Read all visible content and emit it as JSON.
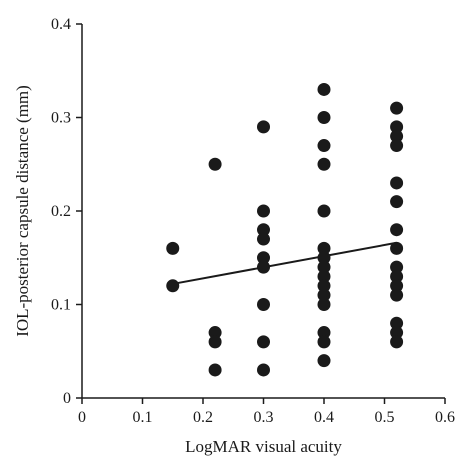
{
  "chart_data": {
    "type": "scatter",
    "xlabel": "LogMAR visual acuity",
    "ylabel": "IOL-posterior capsule distance (mm)",
    "xlim": [
      0,
      0.6
    ],
    "ylim": [
      0,
      0.4
    ],
    "xticks": [
      "0",
      "0.1",
      "0.2",
      "0.3",
      "0.4",
      "0.5",
      "0.6"
    ],
    "yticks": [
      "0",
      "0.1",
      "0.2",
      "0.3",
      "0.4"
    ],
    "grid": false,
    "marker_color": "#1a1a1a",
    "points": [
      {
        "x": 0.15,
        "y": 0.16
      },
      {
        "x": 0.15,
        "y": 0.12
      },
      {
        "x": 0.22,
        "y": 0.25
      },
      {
        "x": 0.22,
        "y": 0.07
      },
      {
        "x": 0.22,
        "y": 0.06
      },
      {
        "x": 0.22,
        "y": 0.03
      },
      {
        "x": 0.3,
        "y": 0.29
      },
      {
        "x": 0.3,
        "y": 0.2
      },
      {
        "x": 0.3,
        "y": 0.18
      },
      {
        "x": 0.3,
        "y": 0.17
      },
      {
        "x": 0.3,
        "y": 0.15
      },
      {
        "x": 0.3,
        "y": 0.14
      },
      {
        "x": 0.3,
        "y": 0.1
      },
      {
        "x": 0.3,
        "y": 0.06
      },
      {
        "x": 0.3,
        "y": 0.03
      },
      {
        "x": 0.4,
        "y": 0.33
      },
      {
        "x": 0.4,
        "y": 0.3
      },
      {
        "x": 0.4,
        "y": 0.27
      },
      {
        "x": 0.4,
        "y": 0.25
      },
      {
        "x": 0.4,
        "y": 0.2
      },
      {
        "x": 0.4,
        "y": 0.16
      },
      {
        "x": 0.4,
        "y": 0.15
      },
      {
        "x": 0.4,
        "y": 0.14
      },
      {
        "x": 0.4,
        "y": 0.13
      },
      {
        "x": 0.4,
        "y": 0.12
      },
      {
        "x": 0.4,
        "y": 0.11
      },
      {
        "x": 0.4,
        "y": 0.1
      },
      {
        "x": 0.4,
        "y": 0.07
      },
      {
        "x": 0.4,
        "y": 0.06
      },
      {
        "x": 0.4,
        "y": 0.04
      },
      {
        "x": 0.52,
        "y": 0.31
      },
      {
        "x": 0.52,
        "y": 0.29
      },
      {
        "x": 0.52,
        "y": 0.28
      },
      {
        "x": 0.52,
        "y": 0.27
      },
      {
        "x": 0.52,
        "y": 0.23
      },
      {
        "x": 0.52,
        "y": 0.21
      },
      {
        "x": 0.52,
        "y": 0.18
      },
      {
        "x": 0.52,
        "y": 0.16
      },
      {
        "x": 0.52,
        "y": 0.14
      },
      {
        "x": 0.52,
        "y": 0.13
      },
      {
        "x": 0.52,
        "y": 0.12
      },
      {
        "x": 0.52,
        "y": 0.11
      },
      {
        "x": 0.52,
        "y": 0.08
      },
      {
        "x": 0.52,
        "y": 0.07
      },
      {
        "x": 0.52,
        "y": 0.06
      }
    ],
    "trendline": {
      "x": [
        0.15,
        0.52
      ],
      "y": [
        0.122,
        0.166
      ]
    }
  }
}
